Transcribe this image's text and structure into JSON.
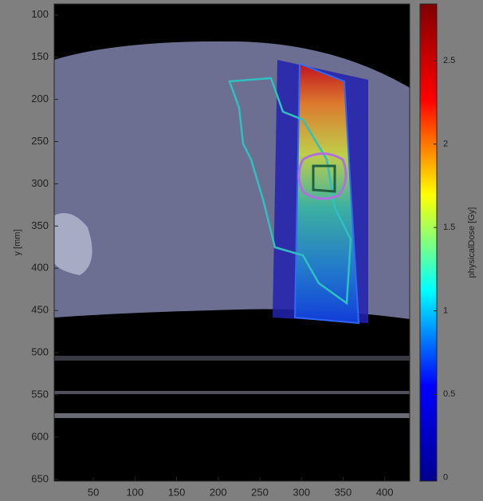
{
  "chart_data": {
    "type": "image",
    "ylabel": "y [mm]",
    "xlim": [
      3,
      430
    ],
    "xticks": [
      50,
      100,
      150,
      200,
      250,
      300,
      350,
      400
    ],
    "ylim": [
      87,
      652
    ],
    "yticks": [
      100,
      150,
      200,
      250,
      300,
      350,
      400,
      450,
      500,
      550,
      600,
      650
    ],
    "colorbar": {
      "label": "physicalDose [Gy]",
      "colormap": "jet",
      "clim": [
        -0.02,
        2.84
      ],
      "ticks": [
        0,
        0.5,
        1,
        1.5,
        2,
        2.5
      ]
    }
  }
}
